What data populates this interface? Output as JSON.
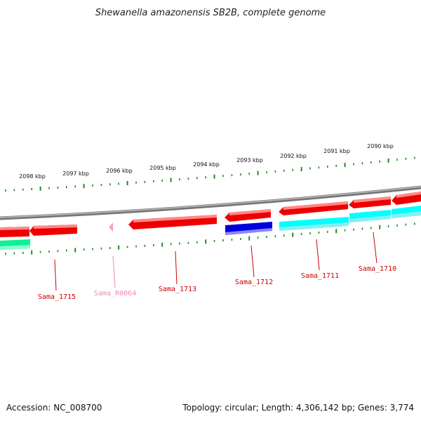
{
  "title": "Shewanella amazonensis SB2B, complete genome",
  "accession": "Accession: NC_008700",
  "summary": "Topology: circular; Length: 4,306,142 bp; Genes: 3,774",
  "colors": {
    "forward_gene": "#ff0000",
    "reverse_gene": "#ff0000",
    "blue_gene": "#0000dd",
    "cyan_feature": "#00ffff",
    "green_feature": "#11ee99",
    "rna": "#ff99cc",
    "label_red": "#cc0000",
    "label_pink": "#ee88bb",
    "tick_green": "#228822",
    "backbone": "#888888"
  },
  "scale_labels": [
    "2098 kbp",
    "2097 kbp",
    "2096 kbp",
    "2095 kbp",
    "2094 kbp",
    "2093 kbp",
    "2092 kbp",
    "2091 kbp",
    "2090 kbp"
  ],
  "gene_labels": [
    {
      "text": "Sama_1715",
      "kind": "gene"
    },
    {
      "text": "Sama_R0064",
      "kind": "rna"
    },
    {
      "text": "Sama_1713",
      "kind": "gene"
    },
    {
      "text": "Sama_1712",
      "kind": "gene"
    },
    {
      "text": "Sama_1711",
      "kind": "gene"
    },
    {
      "text": "Sama_1710",
      "kind": "gene"
    }
  ]
}
